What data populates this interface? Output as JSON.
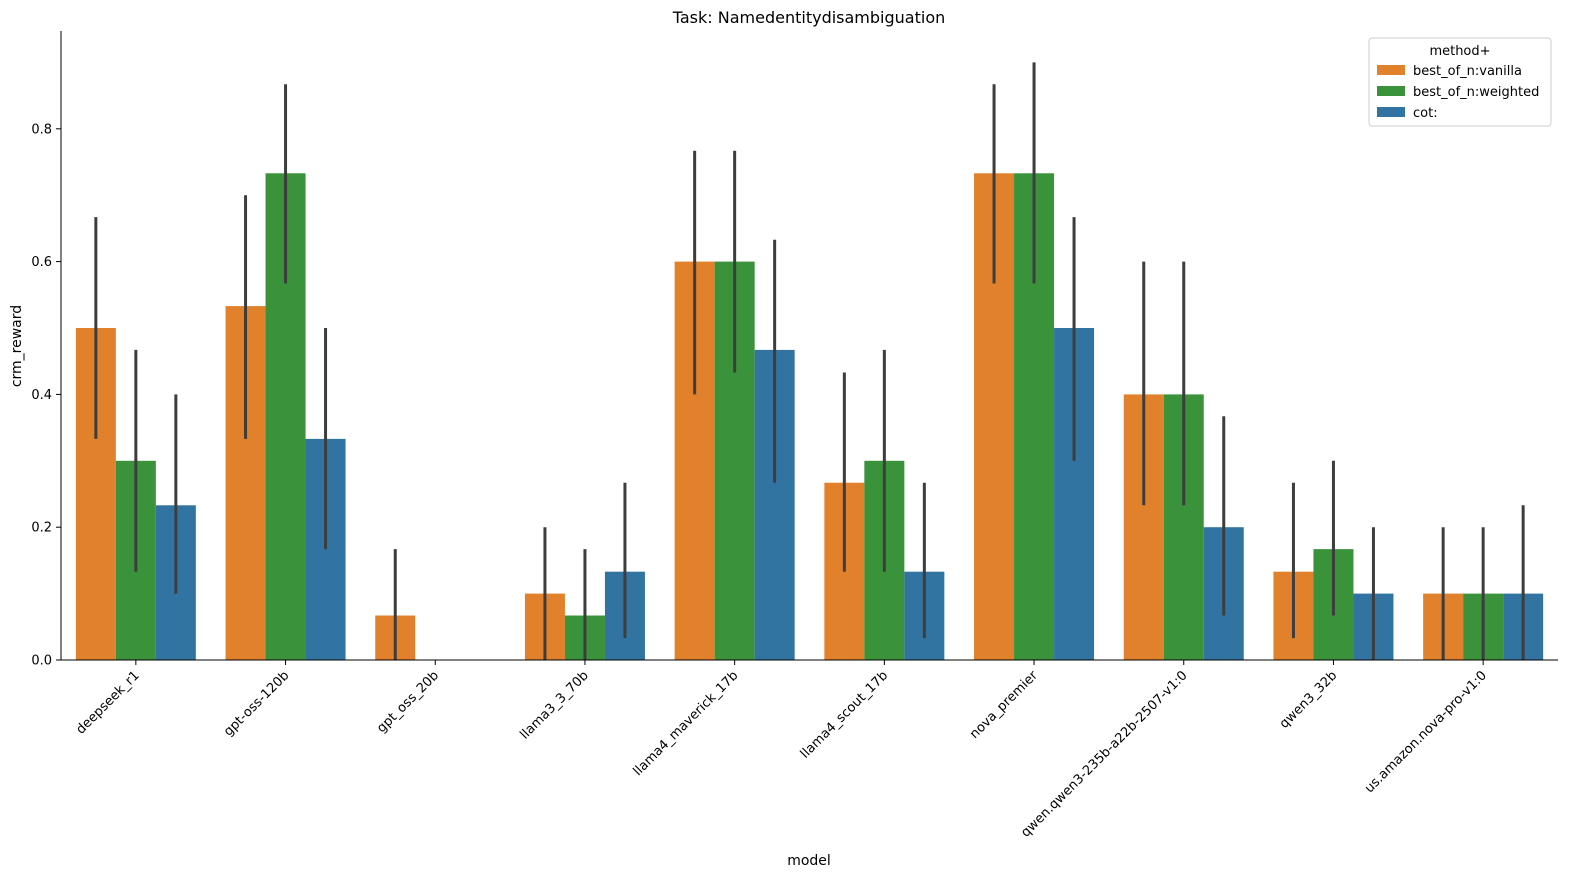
{
  "chart_data": {
    "type": "bar",
    "title": "Task: Namedentitydisambiguation",
    "xlabel": "model",
    "ylabel": "crm_reward",
    "ylim": [
      0,
      0.95
    ],
    "yticks": [
      "0.0",
      "0.2",
      "0.4",
      "0.6",
      "0.8"
    ],
    "grid": false,
    "legend": {
      "title": "method+",
      "placement": "top-right"
    },
    "categories": [
      "deepseek_r1",
      "gpt-oss-120b",
      "gpt_oss_20b",
      "llama3_3_70b",
      "llama4_maverick_17b",
      "llama4_scout_17b",
      "nova_premier",
      "qwen.qwen3-235b-a22b-2507-v1:0",
      "qwen3_32b",
      "us.amazon.nova-pro-v1:0"
    ],
    "series": [
      {
        "name": "best_of_n:vanilla",
        "color": "#e1812c",
        "values": [
          0.5,
          0.533,
          0.067,
          0.1,
          0.6,
          0.267,
          0.733,
          0.4,
          0.133,
          0.1
        ],
        "ci": [
          [
            0.333,
            0.667
          ],
          [
            0.333,
            0.7
          ],
          [
            0.0,
            0.167
          ],
          [
            0.0,
            0.2
          ],
          [
            0.4,
            0.767
          ],
          [
            0.133,
            0.433
          ],
          [
            0.567,
            0.867
          ],
          [
            0.233,
            0.6
          ],
          [
            0.033,
            0.267
          ],
          [
            0.0,
            0.2
          ]
        ]
      },
      {
        "name": "best_of_n:weighted",
        "color": "#3a923a",
        "values": [
          0.3,
          0.733,
          null,
          0.067,
          0.6,
          0.3,
          0.733,
          0.4,
          0.167,
          0.1
        ],
        "ci": [
          [
            0.133,
            0.467
          ],
          [
            0.567,
            0.867
          ],
          null,
          [
            0.0,
            0.167
          ],
          [
            0.433,
            0.767
          ],
          [
            0.133,
            0.467
          ],
          [
            0.567,
            0.9
          ],
          [
            0.233,
            0.6
          ],
          [
            0.067,
            0.3
          ],
          [
            0.0,
            0.2
          ]
        ]
      },
      {
        "name": "cot:",
        "color": "#3274a1",
        "values": [
          0.233,
          0.333,
          null,
          0.133,
          0.467,
          0.133,
          0.5,
          0.2,
          0.1,
          0.1
        ],
        "ci": [
          [
            0.1,
            0.4
          ],
          [
            0.167,
            0.5
          ],
          null,
          [
            0.033,
            0.267
          ],
          [
            0.267,
            0.633
          ],
          [
            0.033,
            0.267
          ],
          [
            0.3,
            0.667
          ],
          [
            0.067,
            0.367
          ],
          [
            0.0,
            0.2
          ],
          [
            0.0,
            0.233
          ]
        ]
      }
    ]
  }
}
